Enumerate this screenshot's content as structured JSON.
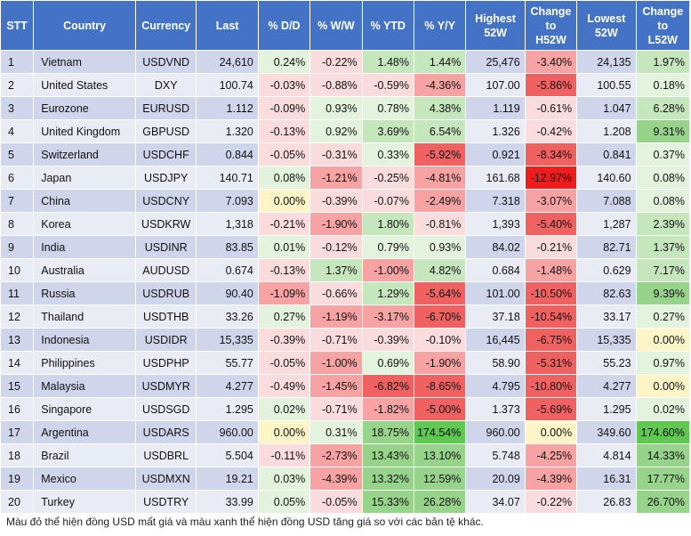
{
  "columns": [
    {
      "key": "stt",
      "lines": [
        "STT"
      ]
    },
    {
      "key": "country",
      "lines": [
        "Country"
      ]
    },
    {
      "key": "currency",
      "lines": [
        "Currency"
      ]
    },
    {
      "key": "last",
      "lines": [
        "Last"
      ]
    },
    {
      "key": "dd",
      "lines": [
        "% D/D"
      ]
    },
    {
      "key": "ww",
      "lines": [
        "% W/W"
      ]
    },
    {
      "key": "ytd",
      "lines": [
        "% YTD"
      ]
    },
    {
      "key": "yy",
      "lines": [
        "% Y/Y"
      ]
    },
    {
      "key": "high52",
      "lines": [
        "Highest",
        "52W"
      ]
    },
    {
      "key": "chg_h52",
      "lines": [
        "Change",
        "to",
        "H52W"
      ]
    },
    {
      "key": "low52",
      "lines": [
        "Lowest",
        "52W"
      ]
    },
    {
      "key": "chg_l52",
      "lines": [
        "Change",
        "to",
        "L52W"
      ]
    }
  ],
  "rows": [
    {
      "stt": "1",
      "country": "Vietnam",
      "currency": "USDVND",
      "last": "24,610",
      "dd": "0.24%",
      "ww": "-0.22%",
      "ytd": "1.48%",
      "yy": "1.44%",
      "high52": "25,476",
      "chg_h52": "-3.40%",
      "low52": "24,135",
      "chg_l52": "1.97%"
    },
    {
      "stt": "2",
      "country": "United States",
      "currency": "DXY",
      "last": "100.74",
      "dd": "-0.03%",
      "ww": "-0.88%",
      "ytd": "-0.59%",
      "yy": "-4.36%",
      "high52": "107.00",
      "chg_h52": "-5.86%",
      "low52": "100.55",
      "chg_l52": "0.18%"
    },
    {
      "stt": "3",
      "country": "Eurozone",
      "currency": "EURUSD",
      "last": "1.112",
      "dd": "-0.09%",
      "ww": "0.93%",
      "ytd": "0.78%",
      "yy": "4.38%",
      "high52": "1.119",
      "chg_h52": "-0.61%",
      "low52": "1.047",
      "chg_l52": "6.28%"
    },
    {
      "stt": "4",
      "country": "United Kingdom",
      "currency": "GBPUSD",
      "last": "1.320",
      "dd": "-0.13%",
      "ww": "0.92%",
      "ytd": "3.69%",
      "yy": "6.54%",
      "high52": "1.326",
      "chg_h52": "-0.42%",
      "low52": "1.208",
      "chg_l52": "9.31%"
    },
    {
      "stt": "5",
      "country": "Switzerland",
      "currency": "USDCHF",
      "last": "0.844",
      "dd": "-0.05%",
      "ww": "-0.31%",
      "ytd": "0.33%",
      "yy": "-5.92%",
      "high52": "0.921",
      "chg_h52": "-8.34%",
      "low52": "0.841",
      "chg_l52": "0.37%"
    },
    {
      "stt": "6",
      "country": "Japan",
      "currency": "USDJPY",
      "last": "140.71",
      "dd": "0.08%",
      "ww": "-1.21%",
      "ytd": "-0.25%",
      "yy": "-4.81%",
      "high52": "161.68",
      "chg_h52": "-12.97%",
      "low52": "140.60",
      "chg_l52": "0.08%"
    },
    {
      "stt": "7",
      "country": "China",
      "currency": "USDCNY",
      "last": "7.093",
      "dd": "0.00%",
      "ww": "-0.39%",
      "ytd": "-0.07%",
      "yy": "-2.49%",
      "high52": "7.318",
      "chg_h52": "-3.07%",
      "low52": "7.088",
      "chg_l52": "0.08%"
    },
    {
      "stt": "8",
      "country": "Korea",
      "currency": "USDKRW",
      "last": "1,318",
      "dd": "-0.21%",
      "ww": "-1.90%",
      "ytd": "1.80%",
      "yy": "-0.81%",
      "high52": "1,393",
      "chg_h52": "-5.40%",
      "low52": "1,287",
      "chg_l52": "2.39%"
    },
    {
      "stt": "9",
      "country": "India",
      "currency": "USDINR",
      "last": "83.85",
      "dd": "0.01%",
      "ww": "-0.12%",
      "ytd": "0.79%",
      "yy": "0.93%",
      "high52": "84.02",
      "chg_h52": "-0.21%",
      "low52": "82.71",
      "chg_l52": "1.37%"
    },
    {
      "stt": "10",
      "country": "Australia",
      "currency": "AUDUSD",
      "last": "0.674",
      "dd": "-0.13%",
      "ww": "1.37%",
      "ytd": "-1.00%",
      "yy": "4.82%",
      "high52": "0.684",
      "chg_h52": "-1.48%",
      "low52": "0.629",
      "chg_l52": "7.17%"
    },
    {
      "stt": "11",
      "country": "Russia",
      "currency": "USDRUB",
      "last": "90.40",
      "dd": "-1.09%",
      "ww": "-0.66%",
      "ytd": "1.29%",
      "yy": "-5.64%",
      "high52": "101.00",
      "chg_h52": "-10.50%",
      "low52": "82.63",
      "chg_l52": "9.39%"
    },
    {
      "stt": "12",
      "country": "Thailand",
      "currency": "USDTHB",
      "last": "33.26",
      "dd": "0.27%",
      "ww": "-1.19%",
      "ytd": "-3.17%",
      "yy": "-6.70%",
      "high52": "37.18",
      "chg_h52": "-10.54%",
      "low52": "33.17",
      "chg_l52": "0.27%"
    },
    {
      "stt": "13",
      "country": "Indonesia",
      "currency": "USDIDR",
      "last": "15,335",
      "dd": "-0.39%",
      "ww": "-0.71%",
      "ytd": "-0.39%",
      "yy": "-0.10%",
      "high52": "16,445",
      "chg_h52": "-6.75%",
      "low52": "15,335",
      "chg_l52": "0.00%"
    },
    {
      "stt": "14",
      "country": "Philippines",
      "currency": "USDPHP",
      "last": "55.77",
      "dd": "-0.05%",
      "ww": "-1.00%",
      "ytd": "0.69%",
      "yy": "-1.90%",
      "high52": "58.90",
      "chg_h52": "-5.31%",
      "low52": "55.23",
      "chg_l52": "0.97%"
    },
    {
      "stt": "15",
      "country": "Malaysia",
      "currency": "USDMYR",
      "last": "4.277",
      "dd": "-0.49%",
      "ww": "-1.45%",
      "ytd": "-6.82%",
      "yy": "-8.65%",
      "high52": "4.795",
      "chg_h52": "-10.80%",
      "low52": "4.277",
      "chg_l52": "0.00%"
    },
    {
      "stt": "16",
      "country": "Singapore",
      "currency": "USDSGD",
      "last": "1.295",
      "dd": "0.02%",
      "ww": "-0.71%",
      "ytd": "-1.82%",
      "yy": "-5.00%",
      "high52": "1.373",
      "chg_h52": "-5.69%",
      "low52": "1.295",
      "chg_l52": "0.02%"
    },
    {
      "stt": "17",
      "country": "Argentina",
      "currency": "USDARS",
      "last": "960.00",
      "dd": "0.00%",
      "ww": "0.31%",
      "ytd": "18.75%",
      "yy": "174.54%",
      "high52": "960.00",
      "chg_h52": "0.00%",
      "low52": "349.60",
      "chg_l52": "174.60%"
    },
    {
      "stt": "18",
      "country": "Brazil",
      "currency": "USDBRL",
      "last": "5.504",
      "dd": "-0.11%",
      "ww": "-2.73%",
      "ytd": "13.43%",
      "yy": "13.10%",
      "high52": "5.748",
      "chg_h52": "-4.25%",
      "low52": "4.814",
      "chg_l52": "14.33%"
    },
    {
      "stt": "19",
      "country": "Mexico",
      "currency": "USDMXN",
      "last": "19.21",
      "dd": "0.03%",
      "ww": "-4.39%",
      "ytd": "13.32%",
      "yy": "12.59%",
      "high52": "20.09",
      "chg_h52": "-4.39%",
      "low52": "16.31",
      "chg_l52": "17.77%"
    },
    {
      "stt": "20",
      "country": "Turkey",
      "currency": "USDTRY",
      "last": "33.99",
      "dd": "0.05%",
      "ww": "-0.05%",
      "ytd": "15.33%",
      "yy": "26.28%",
      "high52": "34.07",
      "chg_h52": "-0.22%",
      "low52": "26.83",
      "chg_l52": "26.70%"
    }
  ],
  "colors": {
    "header_bg": "#4472c4",
    "header_text": "#ffffff",
    "row_odd": "#cfd5ea",
    "row_even": "#e9ebf5",
    "neutral": "#fdf4c8",
    "neg_light": "#fbdcdc",
    "neg_mid": "#f7a3a3",
    "neg_strong": "#f06262",
    "neg_max": "#ee1c1c",
    "pos_light": "#e3f3de",
    "pos_mid": "#c6e6bd",
    "pos_strong": "#97d38a",
    "pos_max": "#5ec850"
  },
  "footnote": "Màu đỏ thể hiện đồng USD mất giá và màu xanh thể hiện đồng USD tăng giá so với các bản tệ khác."
}
